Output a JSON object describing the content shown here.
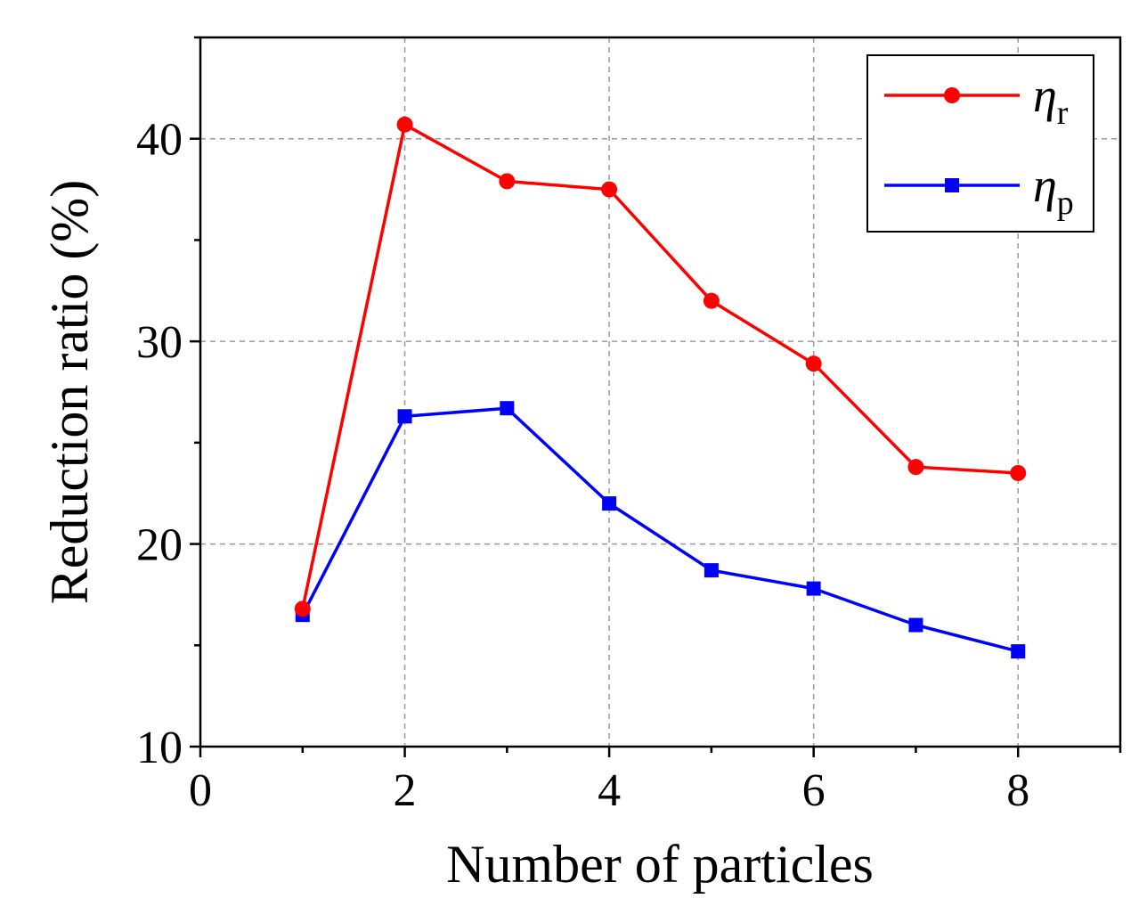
{
  "chart_data": {
    "type": "line",
    "title": "",
    "xlabel": "Number of particles",
    "ylabel": "Reduction ratio (%)",
    "xlim": [
      0,
      9
    ],
    "ylim": [
      10,
      45
    ],
    "x_ticks": [
      0,
      2,
      4,
      6,
      8
    ],
    "x_minor_ticks": [
      1,
      3,
      5,
      7,
      9
    ],
    "y_ticks": [
      10,
      20,
      30,
      40
    ],
    "y_minor_ticks": [
      15,
      25,
      35,
      45
    ],
    "x_grid": [
      2,
      4,
      6,
      8
    ],
    "y_grid": [
      20,
      30,
      40
    ],
    "grid": true,
    "legend_position": "top-right",
    "x": [
      1,
      2,
      3,
      4,
      5,
      6,
      7,
      8
    ],
    "series": [
      {
        "name": "η",
        "subscript": "r",
        "color": "#ff0000",
        "marker": "circle",
        "values": [
          16.8,
          40.7,
          37.9,
          37.5,
          32.0,
          28.9,
          23.8,
          23.5
        ]
      },
      {
        "name": "η",
        "subscript": "p",
        "color": "#0000ff",
        "marker": "square",
        "values": [
          16.5,
          26.3,
          26.7,
          22.0,
          18.7,
          17.8,
          16.0,
          14.7
        ]
      }
    ]
  }
}
